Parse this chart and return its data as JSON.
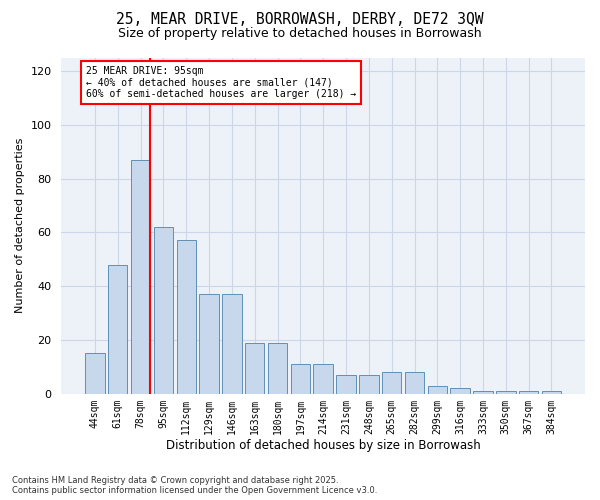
{
  "title_line1": "25, MEAR DRIVE, BORROWASH, DERBY, DE72 3QW",
  "title_line2": "Size of property relative to detached houses in Borrowash",
  "xlabel": "Distribution of detached houses by size in Borrowash",
  "ylabel": "Number of detached properties",
  "categories": [
    "44sqm",
    "61sqm",
    "78sqm",
    "95sqm",
    "112sqm",
    "129sqm",
    "146sqm",
    "163sqm",
    "180sqm",
    "197sqm",
    "214sqm",
    "231sqm",
    "248sqm",
    "265sqm",
    "282sqm",
    "299sqm",
    "316sqm",
    "333sqm",
    "350sqm",
    "367sqm",
    "384sqm"
  ],
  "values": [
    15,
    48,
    87,
    62,
    57,
    37,
    37,
    19,
    19,
    11,
    11,
    7,
    7,
    8,
    8,
    3,
    2,
    1,
    1,
    1,
    1
  ],
  "bar_color": "#c8d8ec",
  "bar_edge_color": "#6090b8",
  "red_line_index": 2,
  "annotation_text": "25 MEAR DRIVE: 95sqm\n← 40% of detached houses are smaller (147)\n60% of semi-detached houses are larger (218) →",
  "red_line_color": "red",
  "ylim": [
    0,
    125
  ],
  "yticks": [
    0,
    20,
    40,
    60,
    80,
    100,
    120
  ],
  "grid_color": "#ccd6e8",
  "bg_color": "#edf1f8",
  "footnote": "Contains HM Land Registry data © Crown copyright and database right 2025.\nContains public sector information licensed under the Open Government Licence v3.0.",
  "title_fontsize": 10.5,
  "subtitle_fontsize": 9
}
